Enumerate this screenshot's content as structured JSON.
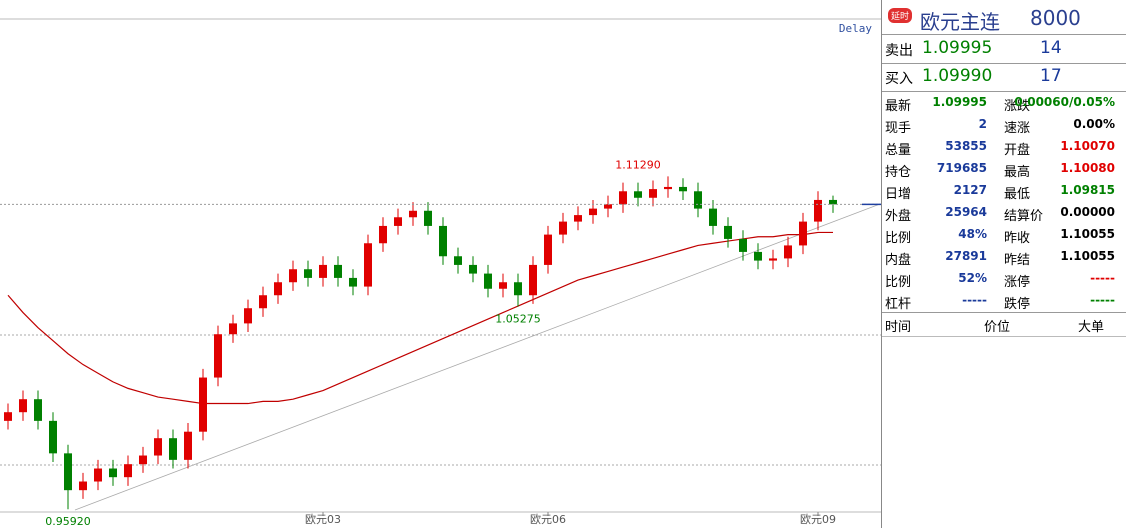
{
  "chart_data": {
    "type": "candlestick",
    "delay_label": "Delay",
    "categories": [
      null,
      null,
      null,
      null,
      null,
      null,
      null,
      null,
      null,
      null,
      null,
      null,
      null,
      null,
      null,
      null,
      null,
      null,
      null,
      null,
      null,
      "欧元03",
      null,
      null,
      null,
      null,
      null,
      null,
      null,
      null,
      null,
      null,
      null,
      null,
      null,
      null,
      "欧元06",
      null,
      null,
      null,
      null,
      null,
      null,
      null,
      null,
      null,
      null,
      null,
      null,
      null,
      null,
      null,
      null,
      null,
      "欧元09",
      null
    ],
    "open": [
      1.0,
      1.004,
      1.01,
      1.0,
      0.985,
      0.968,
      0.972,
      0.978,
      0.974,
      0.98,
      0.984,
      0.992,
      0.982,
      0.995,
      1.02,
      1.04,
      1.045,
      1.052,
      1.058,
      1.064,
      1.07,
      1.066,
      1.072,
      1.066,
      1.062,
      1.082,
      1.09,
      1.094,
      1.097,
      1.09,
      1.076,
      1.072,
      1.068,
      1.061,
      1.064,
      1.058,
      1.072,
      1.086,
      1.092,
      1.095,
      1.098,
      1.1,
      1.106,
      1.103,
      1.107,
      1.108,
      1.106,
      1.098,
      1.09,
      1.084,
      1.078,
      1.074,
      1.075,
      1.081,
      1.092,
      1.102
    ],
    "high": [
      1.008,
      1.014,
      1.014,
      1.004,
      0.989,
      0.976,
      0.982,
      0.982,
      0.984,
      0.988,
      0.996,
      0.996,
      0.999,
      1.024,
      1.044,
      1.049,
      1.056,
      1.062,
      1.068,
      1.074,
      1.074,
      1.076,
      1.076,
      1.07,
      1.086,
      1.094,
      1.098,
      1.101,
      1.101,
      1.094,
      1.08,
      1.076,
      1.072,
      1.068,
      1.068,
      1.076,
      1.09,
      1.096,
      1.099,
      1.102,
      1.104,
      1.11,
      1.11,
      1.111,
      1.1129,
      1.112,
      1.11,
      1.102,
      1.094,
      1.088,
      1.082,
      1.079,
      1.085,
      1.096,
      1.106,
      1.104
    ],
    "low": [
      0.996,
      1.0,
      0.996,
      0.981,
      0.9592,
      0.964,
      0.968,
      0.97,
      0.97,
      0.976,
      0.98,
      0.978,
      0.978,
      0.991,
      1.016,
      1.036,
      1.041,
      1.048,
      1.054,
      1.06,
      1.062,
      1.062,
      1.062,
      1.058,
      1.058,
      1.078,
      1.086,
      1.09,
      1.086,
      1.072,
      1.068,
      1.064,
      1.057,
      1.057,
      1.05275,
      1.054,
      1.068,
      1.082,
      1.088,
      1.091,
      1.094,
      1.096,
      1.099,
      1.099,
      1.103,
      1.102,
      1.094,
      1.086,
      1.08,
      1.074,
      1.07,
      1.07,
      1.071,
      1.077,
      1.088,
      1.096
    ],
    "close": [
      1.004,
      1.01,
      1.0,
      0.985,
      0.968,
      0.972,
      0.978,
      0.974,
      0.98,
      0.984,
      0.992,
      0.982,
      0.995,
      1.02,
      1.04,
      1.045,
      1.052,
      1.058,
      1.064,
      1.07,
      1.066,
      1.072,
      1.066,
      1.062,
      1.082,
      1.09,
      1.094,
      1.097,
      1.09,
      1.076,
      1.072,
      1.068,
      1.061,
      1.064,
      1.058,
      1.072,
      1.086,
      1.092,
      1.095,
      1.098,
      1.1,
      1.106,
      1.103,
      1.107,
      1.108,
      1.106,
      1.098,
      1.09,
      1.084,
      1.078,
      1.074,
      1.075,
      1.081,
      1.092,
      1.102,
      1.09995
    ],
    "up_color": "#e00000",
    "down_color": "#008000",
    "ma": {
      "color": "#c00000",
      "values": [
        1.058,
        1.05,
        1.043,
        1.037,
        1.031,
        1.026,
        1.022,
        1.018,
        1.015,
        1.013,
        1.011,
        1.01,
        1.009,
        1.008,
        1.008,
        1.008,
        1.008,
        1.009,
        1.009,
        1.01,
        1.012,
        1.014,
        1.017,
        1.02,
        1.023,
        1.026,
        1.029,
        1.032,
        1.035,
        1.038,
        1.041,
        1.044,
        1.047,
        1.05,
        1.053,
        1.056,
        1.059,
        1.062,
        1.065,
        1.067,
        1.069,
        1.071,
        1.073,
        1.075,
        1.077,
        1.079,
        1.081,
        1.082,
        1.083,
        1.084,
        1.085,
        1.085,
        1.086,
        1.086,
        1.087,
        1.087
      ]
    },
    "annotations": [
      {
        "index": 44,
        "field": "high",
        "label": "1.11290",
        "color": "#e00000"
      },
      {
        "index": 34,
        "field": "low",
        "label": "1.05275",
        "color": "#008000"
      },
      {
        "index": 4,
        "field": "low",
        "label": "0.95920",
        "color": "#008000"
      }
    ],
    "ylim": [
      0.957,
      1.186
    ]
  },
  "quote_panel": {
    "badge": "延时",
    "name": "欧元主连",
    "code": "8000",
    "book": [
      [
        "卖出",
        "1.09995",
        "14"
      ],
      [
        "买入",
        "1.09990",
        "17"
      ]
    ],
    "stats": [
      [
        "最新",
        "1.09995",
        "涨跌",
        "0.00060/0.05%"
      ],
      [
        "现手",
        "2",
        "速涨",
        "0.00%"
      ],
      [
        "总量",
        "53855",
        "开盘",
        "1.10070"
      ],
      [
        "持仓",
        "719685",
        "最高",
        "1.10080"
      ],
      [
        "日增",
        "2127",
        "最低",
        "1.09815"
      ],
      [
        "外盘",
        "25964",
        "结算价",
        "0.00000"
      ],
      [
        "比例",
        "48%",
        "昨收",
        "1.10055"
      ],
      [
        "内盘",
        "27891",
        "昨结",
        "1.10055"
      ],
      [
        "比例",
        "52%",
        "涨停",
        "-----"
      ],
      [
        "杠杆",
        "-----",
        "跌停",
        "-----"
      ]
    ],
    "ticks_header": [
      "时间",
      "价位",
      "大单"
    ]
  }
}
